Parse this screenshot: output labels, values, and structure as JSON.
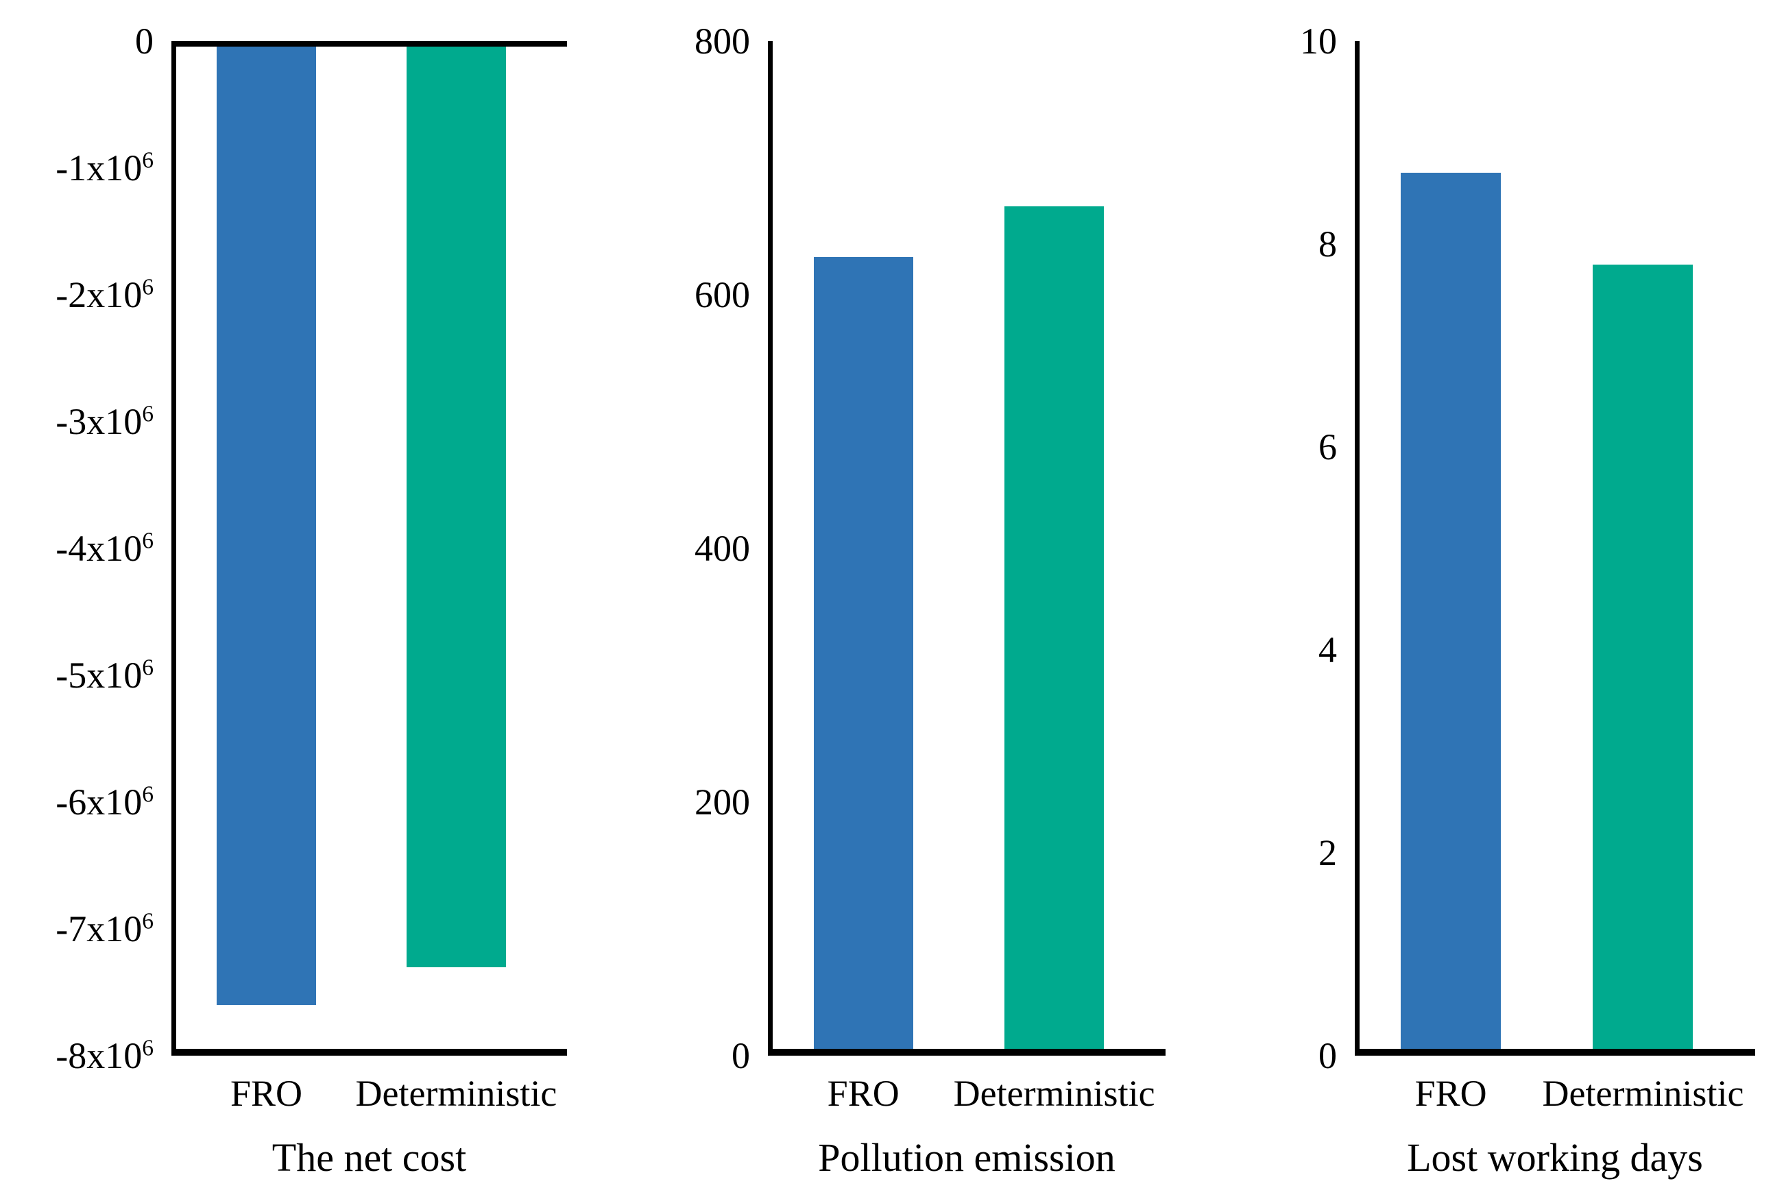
{
  "figure": {
    "background": "#ffffff",
    "text_color": "#000000",
    "axis_color": "#000000"
  },
  "series_colors": {
    "FRO": "#2f74b5",
    "Deterministic": "#00aa8e"
  },
  "chart_data": [
    {
      "type": "bar",
      "title": "The net cost",
      "categories": [
        "FRO",
        "Deterministic"
      ],
      "values": [
        -7600000,
        -7300000
      ],
      "bar_colors": [
        "#2f74b5",
        "#00aa8e"
      ],
      "ylim": [
        -8000000,
        0
      ],
      "yticks": [
        {
          "value": 0,
          "label": "0"
        },
        {
          "value": -1000000,
          "label": "-1x10^6"
        },
        {
          "value": -2000000,
          "label": "-2x10^6"
        },
        {
          "value": -3000000,
          "label": "-3x10^6"
        },
        {
          "value": -4000000,
          "label": "-4x10^6"
        },
        {
          "value": -5000000,
          "label": "-5x10^6"
        },
        {
          "value": -6000000,
          "label": "-6x10^6"
        },
        {
          "value": -7000000,
          "label": "-7x10^6"
        },
        {
          "value": -8000000,
          "label": "-8x10^6"
        }
      ],
      "spines": [
        "left",
        "bottom",
        "top"
      ],
      "grid": false,
      "legend": null
    },
    {
      "type": "bar",
      "title": "Pollution emission",
      "categories": [
        "FRO",
        "Deterministic"
      ],
      "values": [
        630,
        670
      ],
      "bar_colors": [
        "#2f74b5",
        "#00aa8e"
      ],
      "ylim": [
        0,
        800
      ],
      "yticks": [
        {
          "value": 800,
          "label": "800"
        },
        {
          "value": 600,
          "label": "600"
        },
        {
          "value": 400,
          "label": "400"
        },
        {
          "value": 200,
          "label": "200"
        },
        {
          "value": 0,
          "label": "0"
        }
      ],
      "spines": [
        "left",
        "bottom"
      ],
      "grid": false,
      "legend": null
    },
    {
      "type": "bar",
      "title": "Lost working days",
      "categories": [
        "FRO",
        "Deterministic"
      ],
      "values": [
        8.7,
        7.8
      ],
      "bar_colors": [
        "#2f74b5",
        "#00aa8e"
      ],
      "ylim": [
        0,
        10
      ],
      "yticks": [
        {
          "value": 10,
          "label": "10"
        },
        {
          "value": 8,
          "label": "8"
        },
        {
          "value": 6,
          "label": "6"
        },
        {
          "value": 4,
          "label": "4"
        },
        {
          "value": 2,
          "label": "2"
        },
        {
          "value": 0,
          "label": "0"
        }
      ],
      "spines": [
        "left",
        "bottom"
      ],
      "grid": false,
      "legend": null
    }
  ]
}
